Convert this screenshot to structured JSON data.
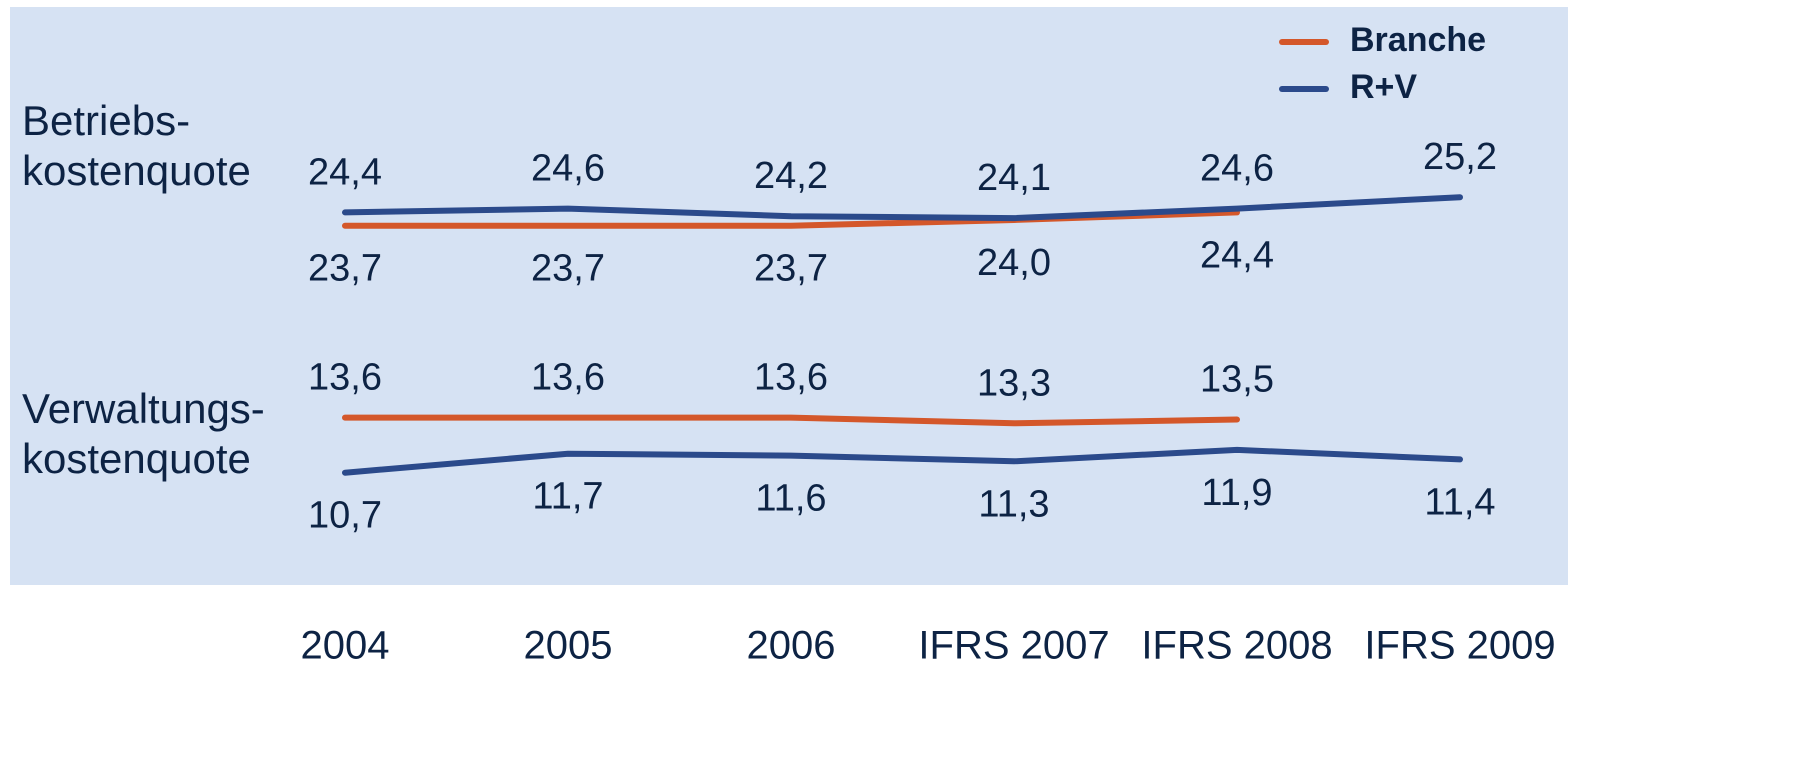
{
  "chart_data": {
    "type": "line",
    "categories": [
      "2004",
      "2005",
      "2006",
      "IFRS 2007",
      "IFRS 2008",
      "IFRS 2009"
    ],
    "legend": "upper right",
    "series": [
      {
        "name": "Branche",
        "color": "#d4572a"
      },
      {
        "name": "R+V",
        "color": "#2b4a8b"
      }
    ],
    "panels": [
      {
        "label": [
          "Betriebs-",
          "kostenquote"
        ],
        "series": [
          {
            "values": [
              23.7,
              23.7,
              23.7,
              24.0,
              24.4,
              null
            ],
            "value_labels": [
              "23,7",
              "23,7",
              "23,7",
              "24,0",
              "24,4",
              null
            ]
          },
          {
            "values": [
              24.4,
              24.6,
              24.2,
              24.1,
              24.6,
              25.2
            ],
            "value_labels": [
              "24,4",
              "24,6",
              "24,2",
              "24,1",
              "24,6",
              "25,2"
            ]
          }
        ]
      },
      {
        "label": [
          "Verwaltungs-",
          "kostenquote"
        ],
        "series": [
          {
            "values": [
              13.6,
              13.6,
              13.6,
              13.3,
              13.5,
              null
            ],
            "value_labels": [
              "13,6",
              "13,6",
              "13,6",
              "13,3",
              "13,5",
              null
            ]
          },
          {
            "values": [
              10.7,
              11.7,
              11.6,
              11.3,
              11.9,
              11.4
            ],
            "value_labels": [
              "10,7",
              "11,7",
              "11,6",
              "11,3",
              "11,9",
              "11,4"
            ]
          }
        ]
      }
    ]
  }
}
